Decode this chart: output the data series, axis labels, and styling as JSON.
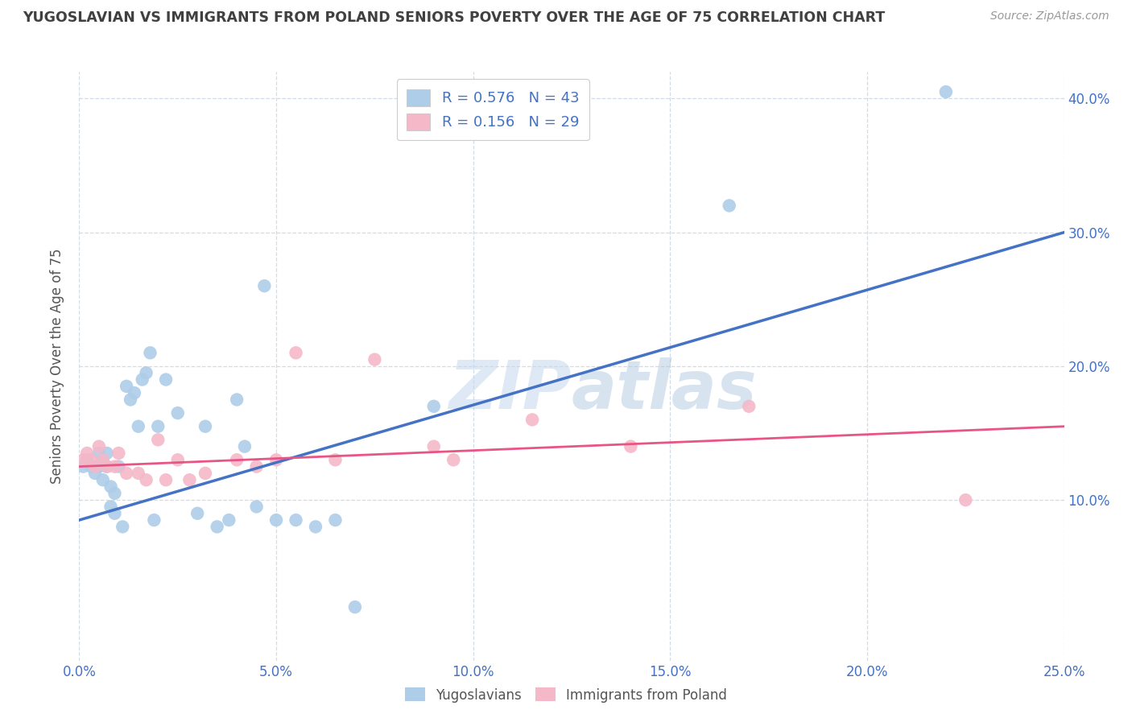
{
  "title": "YUGOSLAVIAN VS IMMIGRANTS FROM POLAND SENIORS POVERTY OVER THE AGE OF 75 CORRELATION CHART",
  "source": "Source: ZipAtlas.com",
  "ylabel": "Seniors Poverty Over the Age of 75",
  "xlabel_ticks": [
    "0.0%",
    "5.0%",
    "10.0%",
    "15.0%",
    "20.0%",
    "25.0%"
  ],
  "ylabel_ticks": [
    "10.0%",
    "20.0%",
    "30.0%",
    "40.0%"
  ],
  "xlim": [
    0.0,
    0.25
  ],
  "ylim": [
    -0.02,
    0.42
  ],
  "legend_labels": [
    "Yugoslavians",
    "Immigrants from Poland"
  ],
  "r_yug": 0.576,
  "n_yug": 43,
  "r_pol": 0.156,
  "n_pol": 29,
  "blue_scatter": "#aecde8",
  "pink_scatter": "#f4b8c8",
  "blue_line_color": "#4472c4",
  "pink_line_color": "#e85585",
  "watermark": "ZIPatlas",
  "title_color": "#404040",
  "axis_tick_color": "#4472c4",
  "grid_color": "#d0dce8",
  "yug_x": [
    0.001,
    0.002,
    0.003,
    0.004,
    0.005,
    0.005,
    0.006,
    0.006,
    0.007,
    0.007,
    0.008,
    0.008,
    0.009,
    0.009,
    0.01,
    0.011,
    0.012,
    0.013,
    0.014,
    0.015,
    0.016,
    0.017,
    0.018,
    0.019,
    0.02,
    0.022,
    0.025,
    0.03,
    0.032,
    0.035,
    0.038,
    0.04,
    0.042,
    0.045,
    0.047,
    0.05,
    0.055,
    0.06,
    0.065,
    0.07,
    0.09,
    0.165,
    0.22
  ],
  "yug_y": [
    0.125,
    0.13,
    0.125,
    0.12,
    0.125,
    0.135,
    0.13,
    0.115,
    0.125,
    0.135,
    0.11,
    0.095,
    0.105,
    0.09,
    0.125,
    0.08,
    0.185,
    0.175,
    0.18,
    0.155,
    0.19,
    0.195,
    0.21,
    0.085,
    0.155,
    0.19,
    0.165,
    0.09,
    0.155,
    0.08,
    0.085,
    0.175,
    0.14,
    0.095,
    0.26,
    0.085,
    0.085,
    0.08,
    0.085,
    0.02,
    0.17,
    0.32,
    0.405
  ],
  "pol_x": [
    0.001,
    0.002,
    0.003,
    0.004,
    0.005,
    0.006,
    0.007,
    0.009,
    0.01,
    0.012,
    0.015,
    0.017,
    0.02,
    0.022,
    0.025,
    0.028,
    0.032,
    0.04,
    0.045,
    0.05,
    0.055,
    0.065,
    0.075,
    0.09,
    0.095,
    0.115,
    0.14,
    0.17,
    0.225
  ],
  "pol_y": [
    0.13,
    0.135,
    0.13,
    0.125,
    0.14,
    0.13,
    0.125,
    0.125,
    0.135,
    0.12,
    0.12,
    0.115,
    0.145,
    0.115,
    0.13,
    0.115,
    0.12,
    0.13,
    0.125,
    0.13,
    0.21,
    0.13,
    0.205,
    0.14,
    0.13,
    0.16,
    0.14,
    0.17,
    0.1
  ],
  "yug_line_x0": 0.0,
  "yug_line_y0": 0.085,
  "yug_line_x1": 0.25,
  "yug_line_y1": 0.3,
  "pol_line_x0": 0.0,
  "pol_line_y0": 0.125,
  "pol_line_x1": 0.25,
  "pol_line_y1": 0.155
}
